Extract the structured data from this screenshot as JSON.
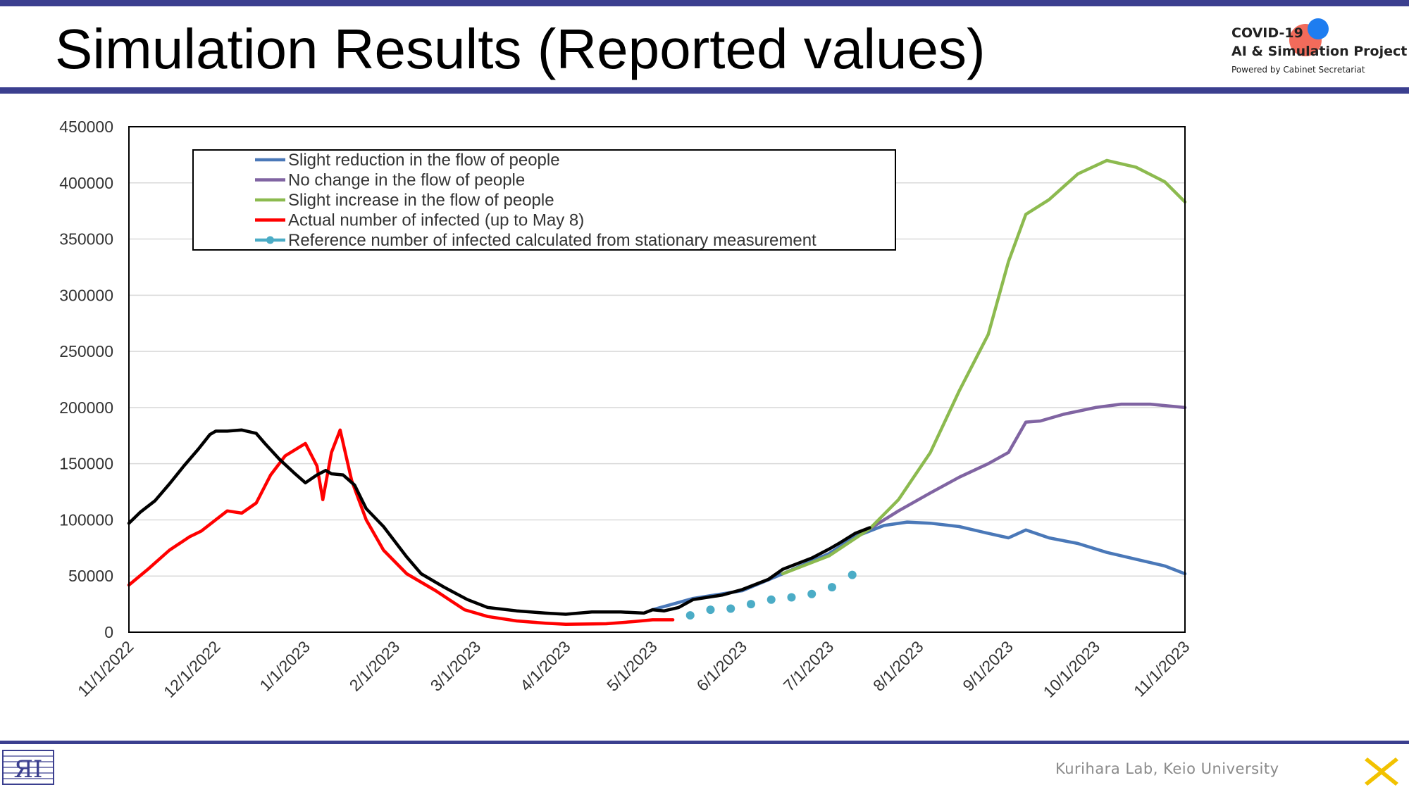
{
  "slide": {
    "title": "Simulation Results (Reported values)",
    "logo": {
      "line1": "COVID-19",
      "line2": "AI & Simulation Project",
      "line3": "Powered by Cabinet Secretariat"
    },
    "footer": "Kurihara Lab, Keio University",
    "accent_color": "#3b3f8f"
  },
  "chart_data": {
    "type": "line",
    "xlabel": "",
    "ylabel": "",
    "x_range": [
      "2022-11-01",
      "2023-11-01"
    ],
    "ylim": [
      0,
      450000
    ],
    "y_ticks": [
      0,
      50000,
      100000,
      150000,
      200000,
      250000,
      300000,
      350000,
      400000,
      450000
    ],
    "x_ticks": [
      "11/1/2022",
      "12/1/2022",
      "1/1/2023",
      "2/1/2023",
      "3/1/2023",
      "4/1/2023",
      "5/1/2023",
      "6/1/2023",
      "7/1/2023",
      "8/1/2023",
      "9/1/2023",
      "10/1/2023",
      "11/1/2023"
    ],
    "x_tick_dates": [
      "2022-11-01",
      "2022-12-01",
      "2023-01-01",
      "2023-02-01",
      "2023-03-01",
      "2023-04-01",
      "2023-05-01",
      "2023-06-01",
      "2023-07-01",
      "2023-08-01",
      "2023-09-01",
      "2023-10-01",
      "2023-11-01"
    ],
    "grid": "horizontal",
    "legend_position": "top-left",
    "series": [
      {
        "name": "Slight reduction in the flow of people",
        "color": "#4a78b8",
        "style": "line",
        "legend": true,
        "points": [
          [
            "2023-05-01",
            20000
          ],
          [
            "2023-05-15",
            30000
          ],
          [
            "2023-06-01",
            37000
          ],
          [
            "2023-06-15",
            52000
          ],
          [
            "2023-07-01",
            70000
          ],
          [
            "2023-07-10",
            85000
          ],
          [
            "2023-07-20",
            95000
          ],
          [
            "2023-07-28",
            98000
          ],
          [
            "2023-08-05",
            97000
          ],
          [
            "2023-08-15",
            94000
          ],
          [
            "2023-08-25",
            88000
          ],
          [
            "2023-09-01",
            84000
          ],
          [
            "2023-09-07",
            91000
          ],
          [
            "2023-09-15",
            84000
          ],
          [
            "2023-09-25",
            79000
          ],
          [
            "2023-10-05",
            71000
          ],
          [
            "2023-10-15",
            65000
          ],
          [
            "2023-10-25",
            59000
          ],
          [
            "2023-11-01",
            52000
          ]
        ]
      },
      {
        "name": "No change in the flow of people",
        "color": "#8064a2",
        "style": "line",
        "legend": true,
        "points": [
          [
            "2023-07-15",
            92000
          ],
          [
            "2023-07-25",
            108000
          ],
          [
            "2023-08-05",
            124000
          ],
          [
            "2023-08-15",
            138000
          ],
          [
            "2023-08-25",
            150000
          ],
          [
            "2023-09-01",
            160000
          ],
          [
            "2023-09-07",
            187000
          ],
          [
            "2023-09-12",
            188000
          ],
          [
            "2023-09-20",
            194000
          ],
          [
            "2023-10-01",
            200000
          ],
          [
            "2023-10-10",
            203000
          ],
          [
            "2023-10-20",
            203000
          ],
          [
            "2023-11-01",
            200000
          ]
        ]
      },
      {
        "name": "Slight increase in the flow of people",
        "color": "#8cba4f",
        "style": "line",
        "legend": true,
        "points": [
          [
            "2023-06-15",
            52000
          ],
          [
            "2023-07-01",
            68000
          ],
          [
            "2023-07-15",
            92000
          ],
          [
            "2023-07-25",
            118000
          ],
          [
            "2023-08-05",
            160000
          ],
          [
            "2023-08-15",
            215000
          ],
          [
            "2023-08-25",
            265000
          ],
          [
            "2023-09-01",
            330000
          ],
          [
            "2023-09-07",
            372000
          ],
          [
            "2023-09-15",
            385000
          ],
          [
            "2023-09-25",
            408000
          ],
          [
            "2023-10-05",
            420000
          ],
          [
            "2023-10-15",
            414000
          ],
          [
            "2023-10-25",
            401000
          ],
          [
            "2023-11-01",
            383000
          ]
        ]
      },
      {
        "name": "Actual number of infected (up to May 8)",
        "color": "#ff0000",
        "style": "line",
        "legend": true,
        "points": [
          [
            "2022-11-01",
            42000
          ],
          [
            "2022-11-08",
            57000
          ],
          [
            "2022-11-15",
            73000
          ],
          [
            "2022-11-22",
            85000
          ],
          [
            "2022-11-26",
            90000
          ],
          [
            "2022-12-01",
            100000
          ],
          [
            "2022-12-05",
            108000
          ],
          [
            "2022-12-10",
            106000
          ],
          [
            "2022-12-15",
            115000
          ],
          [
            "2022-12-20",
            140000
          ],
          [
            "2022-12-25",
            157000
          ],
          [
            "2023-01-01",
            168000
          ],
          [
            "2023-01-05",
            148000
          ],
          [
            "2023-01-07",
            118000
          ],
          [
            "2023-01-10",
            160000
          ],
          [
            "2023-01-13",
            180000
          ],
          [
            "2023-01-17",
            135000
          ],
          [
            "2023-01-22",
            100000
          ],
          [
            "2023-01-28",
            73000
          ],
          [
            "2023-02-05",
            52000
          ],
          [
            "2023-02-15",
            37000
          ],
          [
            "2023-02-25",
            20000
          ],
          [
            "2023-03-05",
            14000
          ],
          [
            "2023-03-15",
            10000
          ],
          [
            "2023-03-25",
            8000
          ],
          [
            "2023-04-01",
            7000
          ],
          [
            "2023-04-15",
            7500
          ],
          [
            "2023-04-25",
            9500
          ],
          [
            "2023-05-01",
            11000
          ],
          [
            "2023-05-08",
            11000
          ]
        ]
      },
      {
        "name": "Reference number of infected calculated from stationary measurement",
        "color": "#4bacc6",
        "style": "dots",
        "legend": true,
        "points": [
          [
            "2023-05-14",
            15000
          ],
          [
            "2023-05-21",
            20000
          ],
          [
            "2023-05-28",
            21000
          ],
          [
            "2023-06-04",
            25000
          ],
          [
            "2023-06-11",
            29000
          ],
          [
            "2023-06-18",
            31000
          ],
          [
            "2023-06-25",
            34000
          ],
          [
            "2023-07-02",
            40000
          ],
          [
            "2023-07-09",
            51000
          ]
        ]
      },
      {
        "name": "",
        "color": "#000000",
        "style": "line",
        "legend": false,
        "points": [
          [
            "2022-11-01",
            97000
          ],
          [
            "2022-11-05",
            107000
          ],
          [
            "2022-11-10",
            117000
          ],
          [
            "2022-11-15",
            132000
          ],
          [
            "2022-11-20",
            148000
          ],
          [
            "2022-11-25",
            163000
          ],
          [
            "2022-11-29",
            176000
          ],
          [
            "2022-12-01",
            179000
          ],
          [
            "2022-12-05",
            179000
          ],
          [
            "2022-12-10",
            180000
          ],
          [
            "2022-12-15",
            177000
          ],
          [
            "2022-12-18",
            168000
          ],
          [
            "2022-12-23",
            154000
          ],
          [
            "2022-12-28",
            142000
          ],
          [
            "2023-01-01",
            133000
          ],
          [
            "2023-01-05",
            140000
          ],
          [
            "2023-01-08",
            144000
          ],
          [
            "2023-01-10",
            141000
          ],
          [
            "2023-01-14",
            140000
          ],
          [
            "2023-01-18",
            131000
          ],
          [
            "2023-01-22",
            110000
          ],
          [
            "2023-01-28",
            94000
          ],
          [
            "2023-02-05",
            67000
          ],
          [
            "2023-02-10",
            52000
          ],
          [
            "2023-02-18",
            40000
          ],
          [
            "2023-02-26",
            29000
          ],
          [
            "2023-03-05",
            22000
          ],
          [
            "2023-03-15",
            19000
          ],
          [
            "2023-03-25",
            17000
          ],
          [
            "2023-04-01",
            16000
          ],
          [
            "2023-04-10",
            18000
          ],
          [
            "2023-04-20",
            18000
          ],
          [
            "2023-04-28",
            17000
          ],
          [
            "2023-05-01",
            20000
          ],
          [
            "2023-05-05",
            19000
          ],
          [
            "2023-05-10",
            22000
          ],
          [
            "2023-05-15",
            29000
          ],
          [
            "2023-05-25",
            33000
          ],
          [
            "2023-06-01",
            38000
          ],
          [
            "2023-06-10",
            47000
          ],
          [
            "2023-06-15",
            56000
          ],
          [
            "2023-06-25",
            66000
          ],
          [
            "2023-07-01",
            74000
          ],
          [
            "2023-07-05",
            80000
          ],
          [
            "2023-07-10",
            88000
          ],
          [
            "2023-07-15",
            93000
          ]
        ]
      }
    ]
  }
}
